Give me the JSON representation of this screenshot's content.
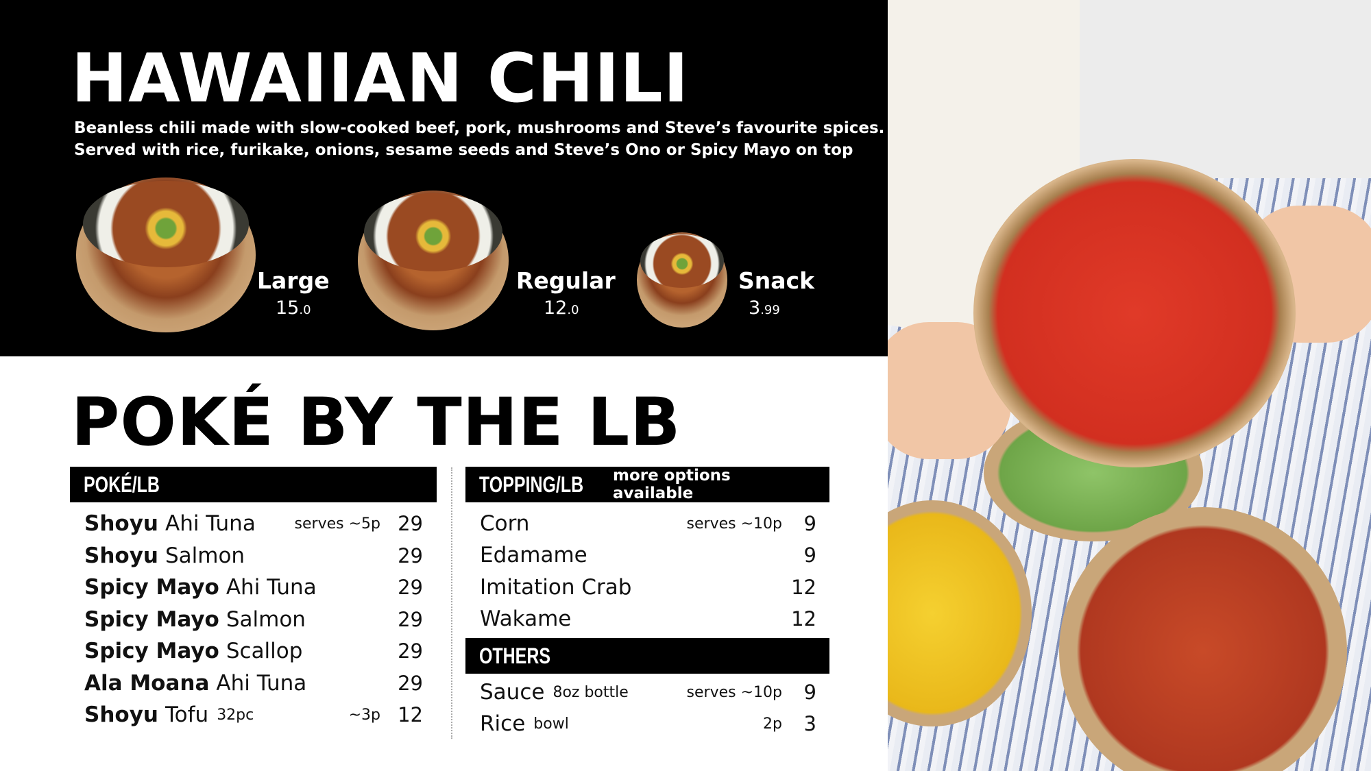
{
  "chili": {
    "title": "HAWAIIAN CHILI",
    "description": [
      "Beanless chili made with slow-cooked beef, pork, mushrooms and Steve’s favourite spices.",
      "Served with rice, furikake, onions, sesame seeds and Steve’s Ono or Spicy Mayo on top"
    ],
    "sizes": [
      {
        "label": "Large",
        "price": "15",
        "price_small": ".0"
      },
      {
        "label": "Regular",
        "price": "12",
        "price_small": ".0"
      },
      {
        "label": "Snack",
        "price": "3",
        "price_small": ".99"
      }
    ]
  },
  "poke": {
    "title": "POKÉ BY THE LB",
    "poke_header": "POKÉ/LB",
    "poke_items": [
      {
        "bold": "Shoyu",
        "name": "Ahi Tuna",
        "sub": "",
        "serves": "serves ~5p",
        "price": "29"
      },
      {
        "bold": "Shoyu",
        "name": "Salmon",
        "sub": "",
        "serves": "",
        "price": "29"
      },
      {
        "bold": "Spicy Mayo",
        "name": "Ahi Tuna",
        "sub": "",
        "serves": "",
        "price": "29"
      },
      {
        "bold": "Spicy Mayo",
        "name": "Salmon",
        "sub": "",
        "serves": "",
        "price": "29"
      },
      {
        "bold": "Spicy Mayo",
        "name": "Scallop",
        "sub": "",
        "serves": "",
        "price": "29"
      },
      {
        "bold": "Ala Moana",
        "name": "Ahi Tuna",
        "sub": "",
        "serves": "",
        "price": "29"
      },
      {
        "bold": "Shoyu",
        "name": "Tofu",
        "sub": "32pc",
        "serves": "~3p",
        "price": "12"
      }
    ],
    "topping_header": "TOPPING/LB",
    "topping_note": "more options available",
    "topping_items": [
      {
        "name": "Corn",
        "sub": "",
        "serves": "serves ~10p",
        "price": "9"
      },
      {
        "name": "Edamame",
        "sub": "",
        "serves": "",
        "price": "9"
      },
      {
        "name": "Imitation Crab",
        "sub": "",
        "serves": "",
        "price": "12"
      },
      {
        "name": "Wakame",
        "sub": "",
        "serves": "",
        "price": "12"
      }
    ],
    "others_header": "OTHERS",
    "others_items": [
      {
        "name": "Sauce",
        "sub": "8oz bottle",
        "serves": "serves ~10p",
        "price": "9"
      },
      {
        "name": "Rice",
        "sub": "bowl",
        "serves": "2p",
        "price": "3"
      }
    ]
  }
}
